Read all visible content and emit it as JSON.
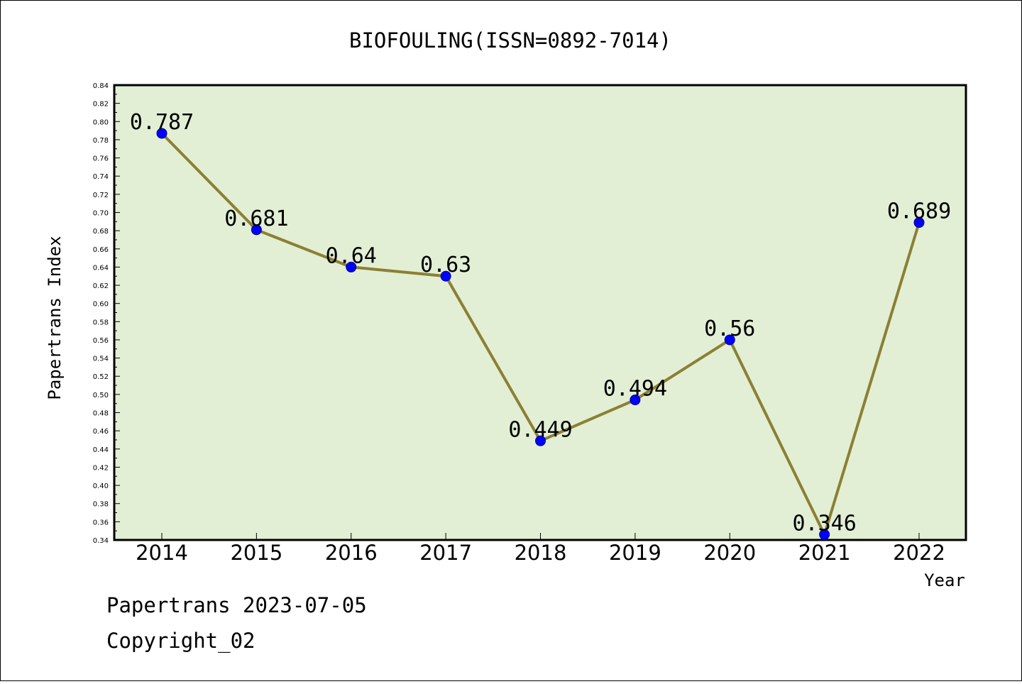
{
  "chart_data": {
    "type": "line",
    "title": "BIOFOULING(ISSN=0892-7014)",
    "xlabel": "Year",
    "ylabel": "Papertrans Index",
    "categories": [
      "2014",
      "2015",
      "2016",
      "2017",
      "2018",
      "2019",
      "2020",
      "2021",
      "2022"
    ],
    "series": [
      {
        "values": [
          0.787,
          0.681,
          0.64,
          0.63,
          0.449,
          0.494,
          0.56,
          0.346,
          0.689
        ],
        "data_labels": [
          "0.787",
          "0.681",
          "0.64",
          "0.63",
          "0.449",
          "0.494",
          "0.56",
          "0.346",
          "0.689"
        ]
      }
    ],
    "ylim": [
      0.34,
      0.84
    ],
    "yticks": [
      "0.34",
      "0.36",
      "0.38",
      "0.40",
      "0.42",
      "0.44",
      "0.46",
      "0.48",
      "0.50",
      "0.52",
      "0.54",
      "0.56",
      "0.58",
      "0.60",
      "0.62",
      "0.64",
      "0.66",
      "0.68",
      "0.70",
      "0.72",
      "0.74",
      "0.76",
      "0.78",
      "0.80",
      "0.82",
      "0.84"
    ],
    "grid": false,
    "colors": {
      "plot_background": "#e2efd5",
      "line": "#8b8033",
      "marker": "#0000ff"
    }
  },
  "footer": {
    "line1": "Papertrans 2023-07-05",
    "line2": "Copyright_02"
  }
}
